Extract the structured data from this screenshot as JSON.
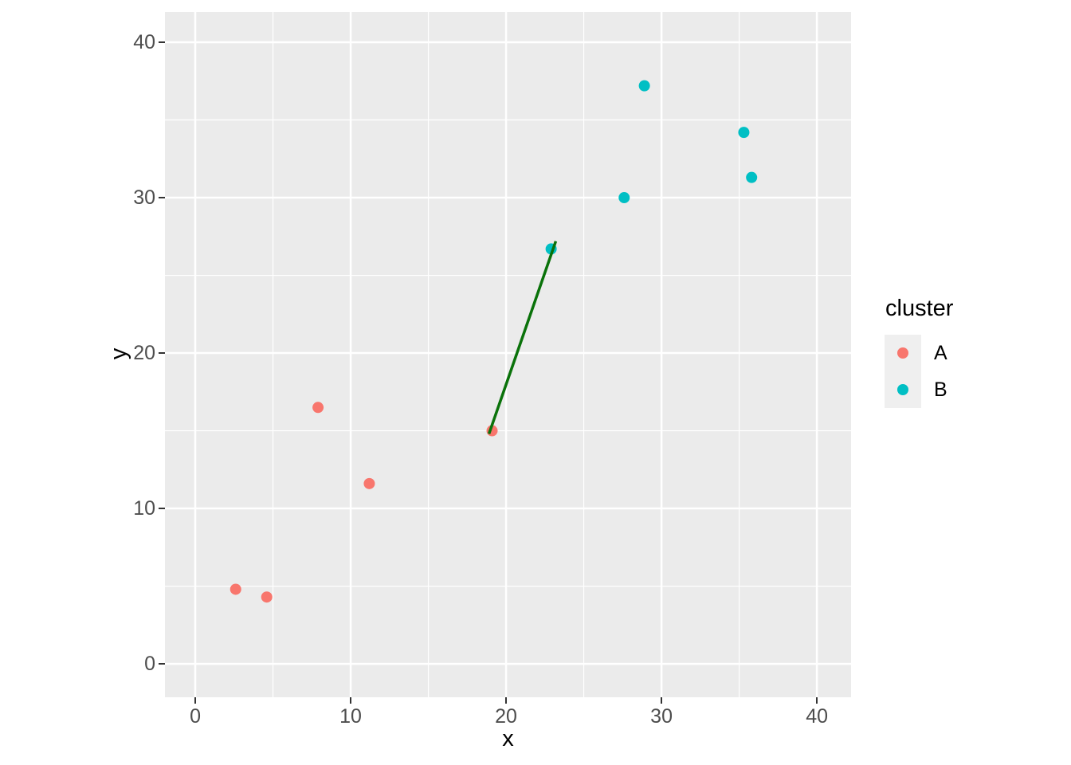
{
  "chart_data": {
    "type": "scatter",
    "title": "",
    "xlabel": "x",
    "ylabel": "y",
    "xlim": [
      -1.95,
      42.2
    ],
    "ylim": [
      -2.15,
      41.95
    ],
    "x_ticks": [
      0,
      10,
      20,
      30,
      40
    ],
    "y_ticks": [
      0,
      10,
      20,
      30,
      40
    ],
    "x_minor_ticks": [
      5,
      15,
      25,
      35
    ],
    "y_minor_ticks": [
      5,
      15,
      25,
      35
    ],
    "grid": true,
    "legend": {
      "title": "cluster",
      "position": "right",
      "entries": [
        {
          "label": "A",
          "color": "#F8766D"
        },
        {
          "label": "B",
          "color": "#00BFC4"
        }
      ]
    },
    "series": [
      {
        "name": "A",
        "color": "#F8766D",
        "points": [
          [
            2.6,
            4.8
          ],
          [
            4.6,
            4.3
          ],
          [
            7.9,
            16.5
          ],
          [
            11.2,
            11.6
          ],
          [
            19.1,
            15.0
          ]
        ]
      },
      {
        "name": "B",
        "color": "#00BFC4",
        "points": [
          [
            22.9,
            26.7
          ],
          [
            27.6,
            30.0
          ],
          [
            28.9,
            37.2
          ],
          [
            35.3,
            34.2
          ],
          [
            35.8,
            31.3
          ]
        ]
      }
    ],
    "segments": [
      {
        "x1": 18.9,
        "y1": 14.8,
        "x2": 23.2,
        "y2": 27.2,
        "color": "#0A720A",
        "width": 3.5
      }
    ],
    "style": {
      "panel_background": "#EBEBEB",
      "grid_color": "#FFFFFF",
      "tick_color": "#333333",
      "tick_label_color": "#4D4D4D",
      "axis_title_color": "#000000",
      "legend_key_background": "#EFEFEF",
      "point_radius": 7
    }
  }
}
